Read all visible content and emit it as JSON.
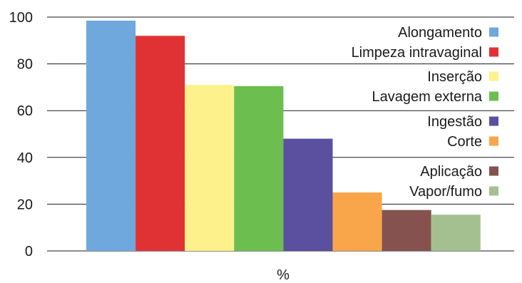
{
  "chart_data": {
    "type": "bar",
    "xlabel": "%",
    "ylabel": "",
    "ylim": [
      0,
      100
    ],
    "yticks": [
      0,
      20,
      40,
      60,
      80,
      100
    ],
    "grid": true,
    "legend_position": "top-right",
    "series": [
      {
        "name": "Alongamento",
        "value": 98.5,
        "color": "#6fa8dc"
      },
      {
        "name": "Limpeza intravaginal",
        "value": 92,
        "color": "#e03234"
      },
      {
        "name": "Inserção",
        "value": 71,
        "color": "#fdf18b"
      },
      {
        "name": "Lavagem externa",
        "value": 70.5,
        "color": "#6cbe4f"
      },
      {
        "name": "Ingestão",
        "value": 48,
        "color": "#5b4fa0"
      },
      {
        "name": "Corte",
        "value": 25,
        "color": "#f9a54a"
      },
      {
        "name": "Aplicação",
        "value": 17.5,
        "color": "#85524f"
      },
      {
        "name": "Vapor/fumo",
        "value": 15.5,
        "color": "#a5c090"
      }
    ]
  }
}
